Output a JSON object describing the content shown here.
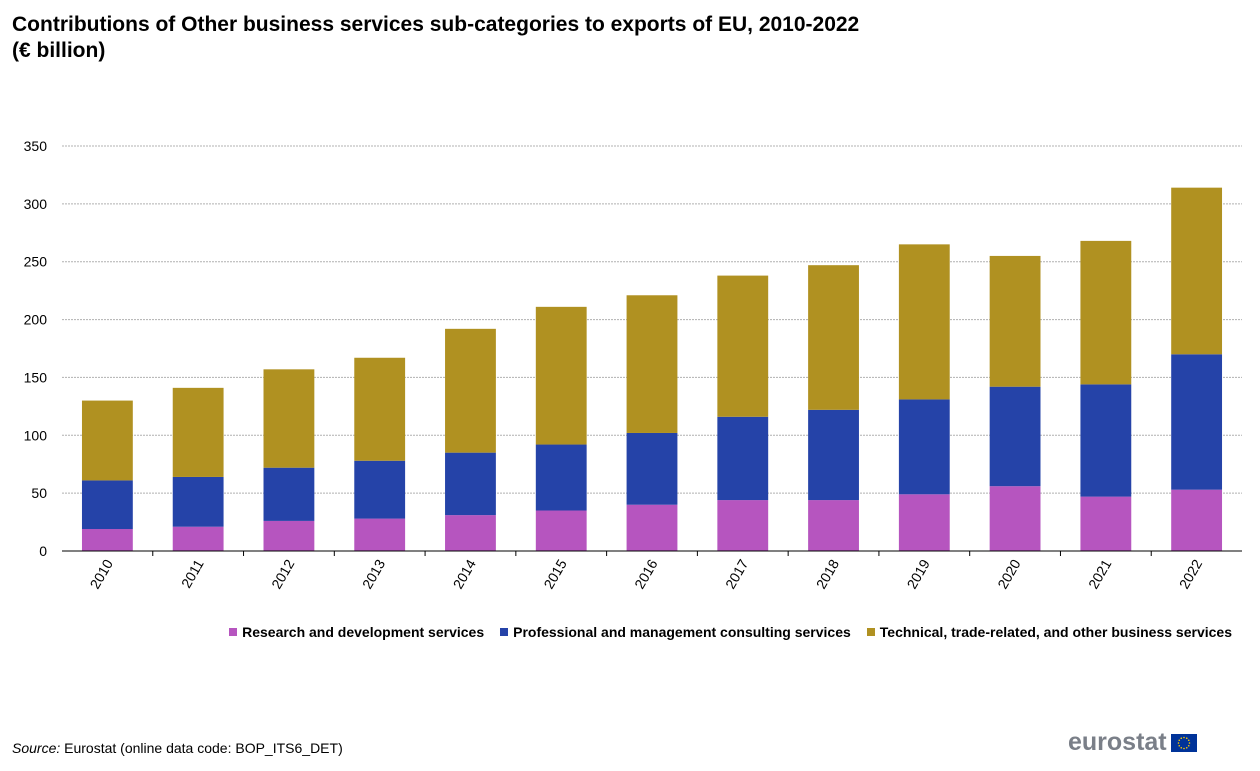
{
  "title_line1": "Contributions of Other business services sub-categories to exports of EU, 2010-2022",
  "title_line2": "(€ billion)",
  "source_label": "Source:",
  "source_text": " Eurostat (online data code: BOP_ITS6_DET)",
  "logo_text": "eurostat",
  "colors": {
    "research": "#b655bf",
    "professional": "#2543a8",
    "technical": "#b09121",
    "gridline": "#b0b0b0",
    "axis": "#000000"
  },
  "chart_data": {
    "type": "bar",
    "stacked": true,
    "title": "Contributions of Other business services sub-categories to exports of EU, 2010-2022 (€ billion)",
    "categories": [
      "2010",
      "2011",
      "2012",
      "2013",
      "2014",
      "2015",
      "2016",
      "2017",
      "2018",
      "2019",
      "2020",
      "2021",
      "2022"
    ],
    "yticks": [
      "0",
      "50",
      "100",
      "150",
      "200",
      "250",
      "300",
      "350"
    ],
    "ylim": [
      0,
      350
    ],
    "grid": true,
    "legend_position": "bottom",
    "series": [
      {
        "name": "Research and development services",
        "color": "#b655bf",
        "values": [
          19,
          21,
          26,
          28,
          31,
          35,
          40,
          44,
          44,
          49,
          56,
          47,
          53
        ]
      },
      {
        "name": "Professional and management consulting services",
        "color": "#2543a8",
        "values": [
          42,
          43,
          46,
          50,
          54,
          57,
          62,
          72,
          78,
          82,
          86,
          97,
          117
        ]
      },
      {
        "name": "Technical, trade-related, and other business services",
        "color": "#b09121",
        "values": [
          69,
          77,
          85,
          89,
          107,
          119,
          119,
          122,
          125,
          134,
          113,
          124,
          144
        ]
      }
    ]
  }
}
